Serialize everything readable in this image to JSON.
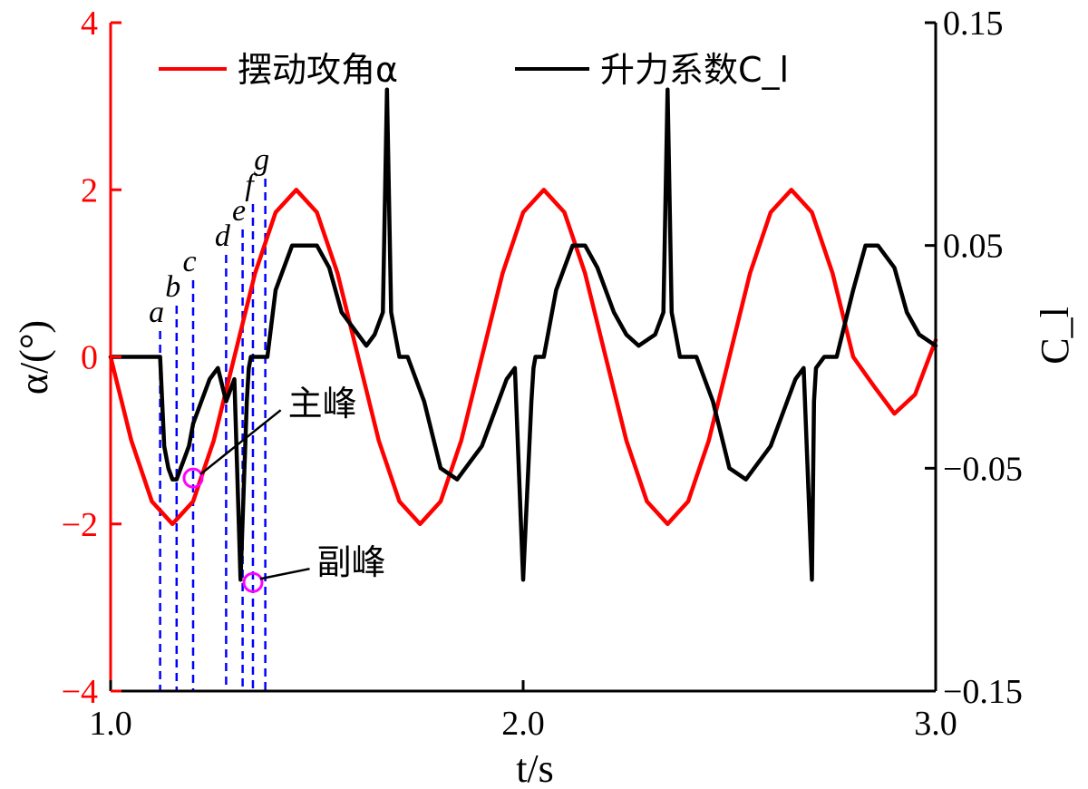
{
  "chart_data": {
    "type": "line",
    "xlabel": "t/s",
    "ylabel_left": "α/(°)",
    "ylabel_right": "C_l",
    "xlim": [
      1.0,
      3.0
    ],
    "ylim_left": [
      -4,
      4
    ],
    "ylim_right": [
      -0.15,
      0.15
    ],
    "x_ticks": [
      1.0,
      2.0,
      3.0
    ],
    "x_tick_labels": [
      "1.0",
      "2.0",
      "3.0"
    ],
    "y_left_ticks": [
      -4,
      -2,
      0,
      2,
      4
    ],
    "y_left_tick_labels": [
      "−4",
      "−2",
      "0",
      "2",
      "4"
    ],
    "y_right_ticks": [
      -0.15,
      -0.05,
      0.05,
      0.15
    ],
    "y_right_tick_labels": [
      "−0.15",
      "−0.05",
      "0.05",
      "0.15"
    ],
    "grid": false,
    "legend_position": "top",
    "colors": {
      "alpha": "#ff0000",
      "cl": "#000000",
      "markers": "#0000ff",
      "peaks": "#ff00ff"
    },
    "series": [
      {
        "name": "摆动攻角α",
        "axis": "left",
        "x": [
          1.0,
          1.05,
          1.1,
          1.15,
          1.2,
          1.25,
          1.3,
          1.35,
          1.4,
          1.45,
          1.5,
          1.55,
          1.6,
          1.65,
          1.7,
          1.75,
          1.8,
          1.85,
          1.9,
          1.95,
          2.0,
          2.05,
          2.1,
          2.15,
          2.2,
          2.25,
          2.3,
          2.35,
          2.4,
          2.45,
          2.5,
          2.55,
          2.6,
          2.65,
          2.7,
          2.75,
          2.8,
          2.85,
          2.9,
          2.95,
          3.0
        ],
        "values": [
          0.0,
          -1.0,
          -1.73,
          -2.0,
          -1.73,
          -1.0,
          0.0,
          1.0,
          1.73,
          2.0,
          1.73,
          1.0,
          0.0,
          -1.0,
          -1.73,
          -2.0,
          -1.73,
          -1.0,
          0.0,
          1.0,
          1.73,
          2.0,
          1.73,
          1.0,
          0.0,
          -1.0,
          -1.73,
          -2.0,
          -1.73,
          -1.0,
          0.0,
          1.0,
          1.73,
          2.0,
          1.73,
          1.0,
          0.0,
          -0.35,
          -0.68,
          -0.45,
          0.2
        ]
      },
      {
        "name": "升力系数C_l",
        "axis": "right",
        "x": [
          1.0,
          1.12,
          1.13,
          1.14,
          1.15,
          1.16,
          1.17,
          1.18,
          1.19,
          1.2,
          1.22,
          1.24,
          1.26,
          1.28,
          1.3,
          1.315,
          1.33,
          1.335,
          1.34,
          1.36,
          1.38,
          1.4,
          1.44,
          1.5,
          1.53,
          1.56,
          1.6,
          1.62,
          1.64,
          1.66,
          1.67,
          1.68,
          1.69,
          1.7,
          1.72,
          1.76,
          1.8,
          1.84,
          1.86,
          1.9,
          1.94,
          1.96,
          1.98,
          2.0,
          2.02,
          2.025,
          2.03,
          2.05,
          2.08,
          2.12,
          2.15,
          2.18,
          2.22,
          2.25,
          2.28,
          2.32,
          2.34,
          2.35,
          2.36,
          2.37,
          2.38,
          2.42,
          2.46,
          2.5,
          2.54,
          2.56,
          2.6,
          2.64,
          2.66,
          2.68,
          2.7,
          2.705,
          2.71,
          2.73,
          2.76,
          2.8,
          2.83,
          2.86,
          2.9,
          2.93,
          2.96,
          3.0
        ],
        "values": [
          0.0,
          0.0,
          -0.04,
          -0.05,
          -0.055,
          -0.055,
          -0.05,
          -0.045,
          -0.04,
          -0.03,
          -0.02,
          -0.01,
          -0.005,
          -0.02,
          -0.01,
          -0.1,
          -0.02,
          -0.005,
          0.0,
          0.0,
          0.0,
          0.03,
          0.05,
          0.05,
          0.04,
          0.02,
          0.01,
          0.005,
          0.01,
          0.02,
          0.12,
          0.02,
          0.01,
          0.0,
          0.0,
          -0.02,
          -0.05,
          -0.055,
          -0.05,
          -0.04,
          -0.02,
          -0.01,
          -0.005,
          -0.1,
          -0.02,
          -0.005,
          0.0,
          0.0,
          0.03,
          0.05,
          0.05,
          0.04,
          0.02,
          0.01,
          0.005,
          0.01,
          0.02,
          0.12,
          0.02,
          0.01,
          0.0,
          0.0,
          -0.02,
          -0.05,
          -0.055,
          -0.05,
          -0.04,
          -0.02,
          -0.01,
          -0.005,
          -0.1,
          -0.02,
          -0.005,
          0.0,
          0.0,
          0.03,
          0.05,
          0.05,
          0.04,
          0.02,
          0.01,
          0.005
        ]
      }
    ],
    "markers": [
      {
        "label": "a",
        "x": 1.12
      },
      {
        "label": "b",
        "x": 1.16
      },
      {
        "label": "c",
        "x": 1.2
      },
      {
        "label": "d",
        "x": 1.28
      },
      {
        "label": "e",
        "x": 1.32
      },
      {
        "label": "f",
        "x": 1.345
      },
      {
        "label": "g",
        "x": 1.375
      }
    ],
    "peaks": [
      {
        "label": "主峰",
        "x": 1.2,
        "y": -1.45,
        "label_x": 1.43,
        "label_y": -0.55
      },
      {
        "label": "副峰",
        "x": 1.345,
        "y": -2.7,
        "label_x": 1.5,
        "label_y": -2.45
      }
    ]
  }
}
